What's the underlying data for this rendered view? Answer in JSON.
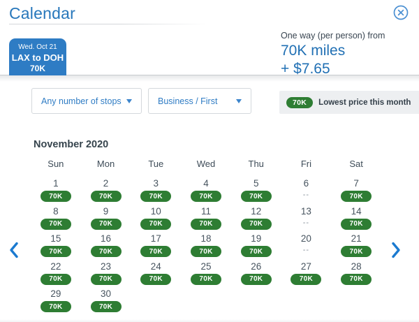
{
  "colors": {
    "brand_blue": "#2e7cc4",
    "link_blue": "#2f7cc4",
    "price_blue": "#2170b4",
    "available_green": "#2e7d33",
    "text_dark": "#36444d",
    "legend_bg": "#edeff1"
  },
  "header": {
    "title": "Calendar"
  },
  "trip_tab": {
    "date": "Wed. Oct 21",
    "route": "LAX to DOH",
    "price": "70K"
  },
  "price_summary": {
    "label": "One way (per person) from",
    "miles": "70K miles",
    "fees": "+ $7.65"
  },
  "filters": {
    "stops_selected": "Any number of stops",
    "cabin_selected": "Business / First"
  },
  "legend": {
    "badge": "70K",
    "label": "Lowest price this month"
  },
  "calendar": {
    "month_title": "November 2020",
    "day_headers": [
      "Sun",
      "Mon",
      "Tue",
      "Wed",
      "Thu",
      "Fri",
      "Sat"
    ],
    "days": [
      {
        "day": "1",
        "price": "70K"
      },
      {
        "day": "2",
        "price": "70K"
      },
      {
        "day": "3",
        "price": "70K"
      },
      {
        "day": "4",
        "price": "70K"
      },
      {
        "day": "5",
        "price": "70K"
      },
      {
        "day": "6",
        "price": "--"
      },
      {
        "day": "7",
        "price": "70K"
      },
      {
        "day": "8",
        "price": "70K"
      },
      {
        "day": "9",
        "price": "70K"
      },
      {
        "day": "10",
        "price": "70K"
      },
      {
        "day": "11",
        "price": "70K"
      },
      {
        "day": "12",
        "price": "70K"
      },
      {
        "day": "13",
        "price": "--"
      },
      {
        "day": "14",
        "price": "70K"
      },
      {
        "day": "15",
        "price": "70K"
      },
      {
        "day": "16",
        "price": "70K"
      },
      {
        "day": "17",
        "price": "70K"
      },
      {
        "day": "18",
        "price": "70K"
      },
      {
        "day": "19",
        "price": "70K"
      },
      {
        "day": "20",
        "price": "--"
      },
      {
        "day": "21",
        "price": "70K"
      },
      {
        "day": "22",
        "price": "70K"
      },
      {
        "day": "23",
        "price": "70K"
      },
      {
        "day": "24",
        "price": "70K"
      },
      {
        "day": "25",
        "price": "70K"
      },
      {
        "day": "26",
        "price": "70K"
      },
      {
        "day": "27",
        "price": "70K"
      },
      {
        "day": "28",
        "price": "70K"
      },
      {
        "day": "29",
        "price": "70K"
      },
      {
        "day": "30",
        "price": "70K"
      }
    ]
  }
}
